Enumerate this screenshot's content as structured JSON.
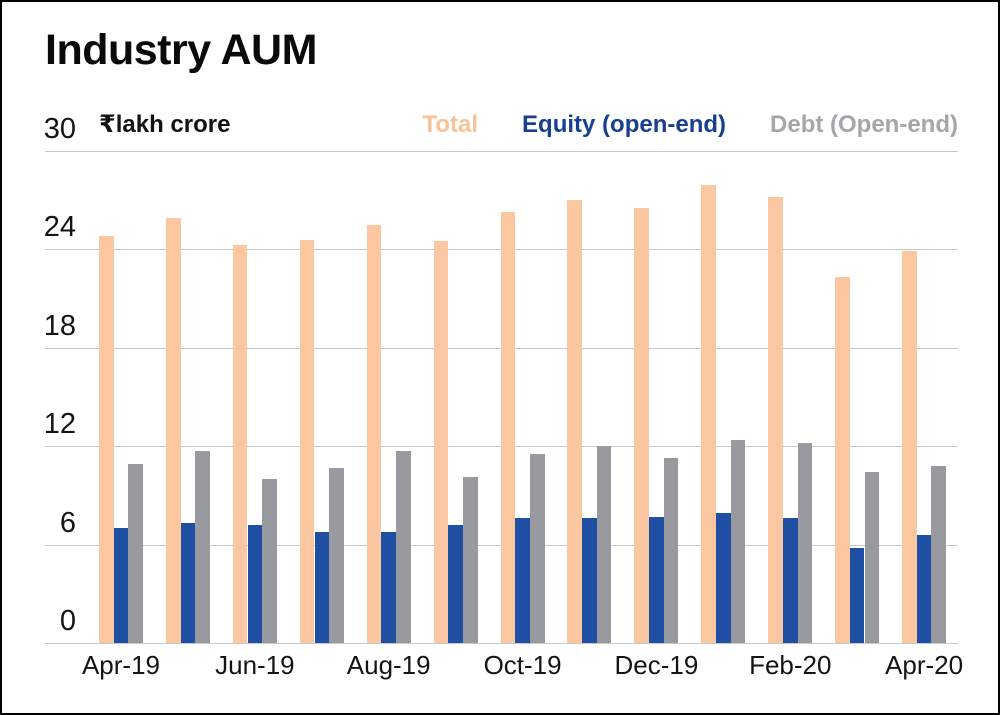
{
  "chart_data": {
    "type": "bar",
    "title": "Industry AUM",
    "unit": "₹lakh crore",
    "xlabel": "",
    "ylabel": "₹lakh crore",
    "ylim": [
      0,
      30
    ],
    "y_ticks": [
      30,
      24,
      18,
      12,
      6,
      0
    ],
    "grid": "horizontal",
    "legend_position": "top-right",
    "categories": [
      "Apr-19",
      "May-19",
      "Jun-19",
      "Jul-19",
      "Aug-19",
      "Sep-19",
      "Oct-19",
      "Nov-19",
      "Dec-19",
      "Jan-20",
      "Feb-20",
      "Mar-20",
      "Apr-20"
    ],
    "x_tick_labels": [
      "Apr-19",
      "Jun-19",
      "Aug-19",
      "Oct-19",
      "Dec-19",
      "Feb-20",
      "Apr-20"
    ],
    "series": [
      {
        "name": "Total",
        "color": "#fac7a0",
        "legend_color": "#f8c29a",
        "values": [
          24.8,
          25.9,
          24.3,
          24.6,
          25.5,
          24.5,
          26.3,
          27.0,
          26.5,
          27.9,
          27.2,
          22.3,
          23.9
        ]
      },
      {
        "name": "Equity (open-end)",
        "color": "#1f4fa3",
        "legend_color": "#193f92",
        "values": [
          7.0,
          7.3,
          7.2,
          6.8,
          6.8,
          7.2,
          7.6,
          7.6,
          7.7,
          7.9,
          7.6,
          5.8,
          6.6
        ]
      },
      {
        "name": "Debt (Open-end)",
        "color": "#989a9f",
        "legend_color": "#a4a6aa",
        "values": [
          10.9,
          11.7,
          10.0,
          10.7,
          11.7,
          10.1,
          11.5,
          12.0,
          11.3,
          12.4,
          12.2,
          10.4,
          10.8
        ]
      }
    ]
  },
  "colors": {
    "background": "#ffffff",
    "border": "#000000",
    "gridline": "#c8c8c8",
    "text": "#141414"
  }
}
